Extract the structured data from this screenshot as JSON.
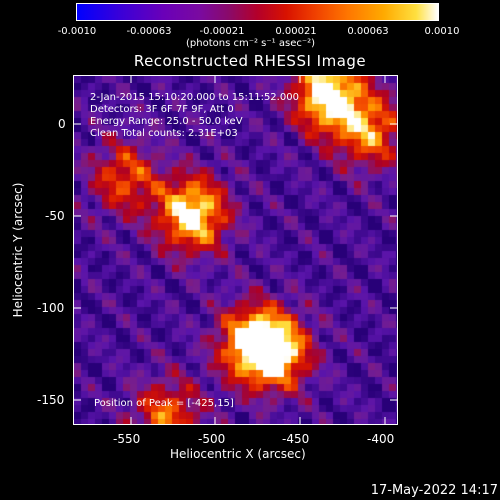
{
  "colorbar": {
    "ticks": [
      "-0.0010",
      "-0.00063",
      "-0.00021",
      "0.00021",
      "0.00063",
      "0.0010"
    ],
    "unit_label": "(photons cm⁻² s⁻¹ asec⁻²)",
    "colors": [
      "#0000ff",
      "#6a00b8",
      "#b4002a",
      "#f04000",
      "#ffaa00",
      "#ffffff"
    ]
  },
  "chart_data": {
    "type": "heatmap",
    "title": "Reconstructed RHESSI Image",
    "xlabel": "Heliocentric X (arcsec)",
    "ylabel": "Heliocentric Y (arcsec)",
    "xlim": [
      -575,
      -383
    ],
    "ylim": [
      -165,
      25
    ],
    "x_ticks": [
      "-550",
      "-500",
      "-450",
      "-400"
    ],
    "y_ticks": [
      "0",
      "-50",
      "-100",
      "-150"
    ],
    "colorbar_range": [
      -0.001,
      0.001
    ],
    "peak_position": [
      -425,
      15
    ],
    "sources": [
      {
        "x": -425,
        "y": 15
      },
      {
        "x": -505,
        "y": -50
      },
      {
        "x": -470,
        "y": -120
      },
      {
        "x": -455,
        "y": -125
      },
      {
        "x": -400,
        "y": -5
      },
      {
        "x": -545,
        "y": -30
      },
      {
        "x": -520,
        "y": -160
      }
    ],
    "annotations": {
      "time": "2-Jan-2015 15:10:20.000 to 15:11:52.000",
      "detectors": "Detectors: 3F 6F 7F 9F, Att 0",
      "energy": "Energy Range: 25.0 - 50.0 keV",
      "clean": "Clean    Total counts: 2.31E+03",
      "peak": "Position of Peak = [-425,15]"
    }
  },
  "footer": {
    "timestamp": "17-May-2022 14:17"
  }
}
